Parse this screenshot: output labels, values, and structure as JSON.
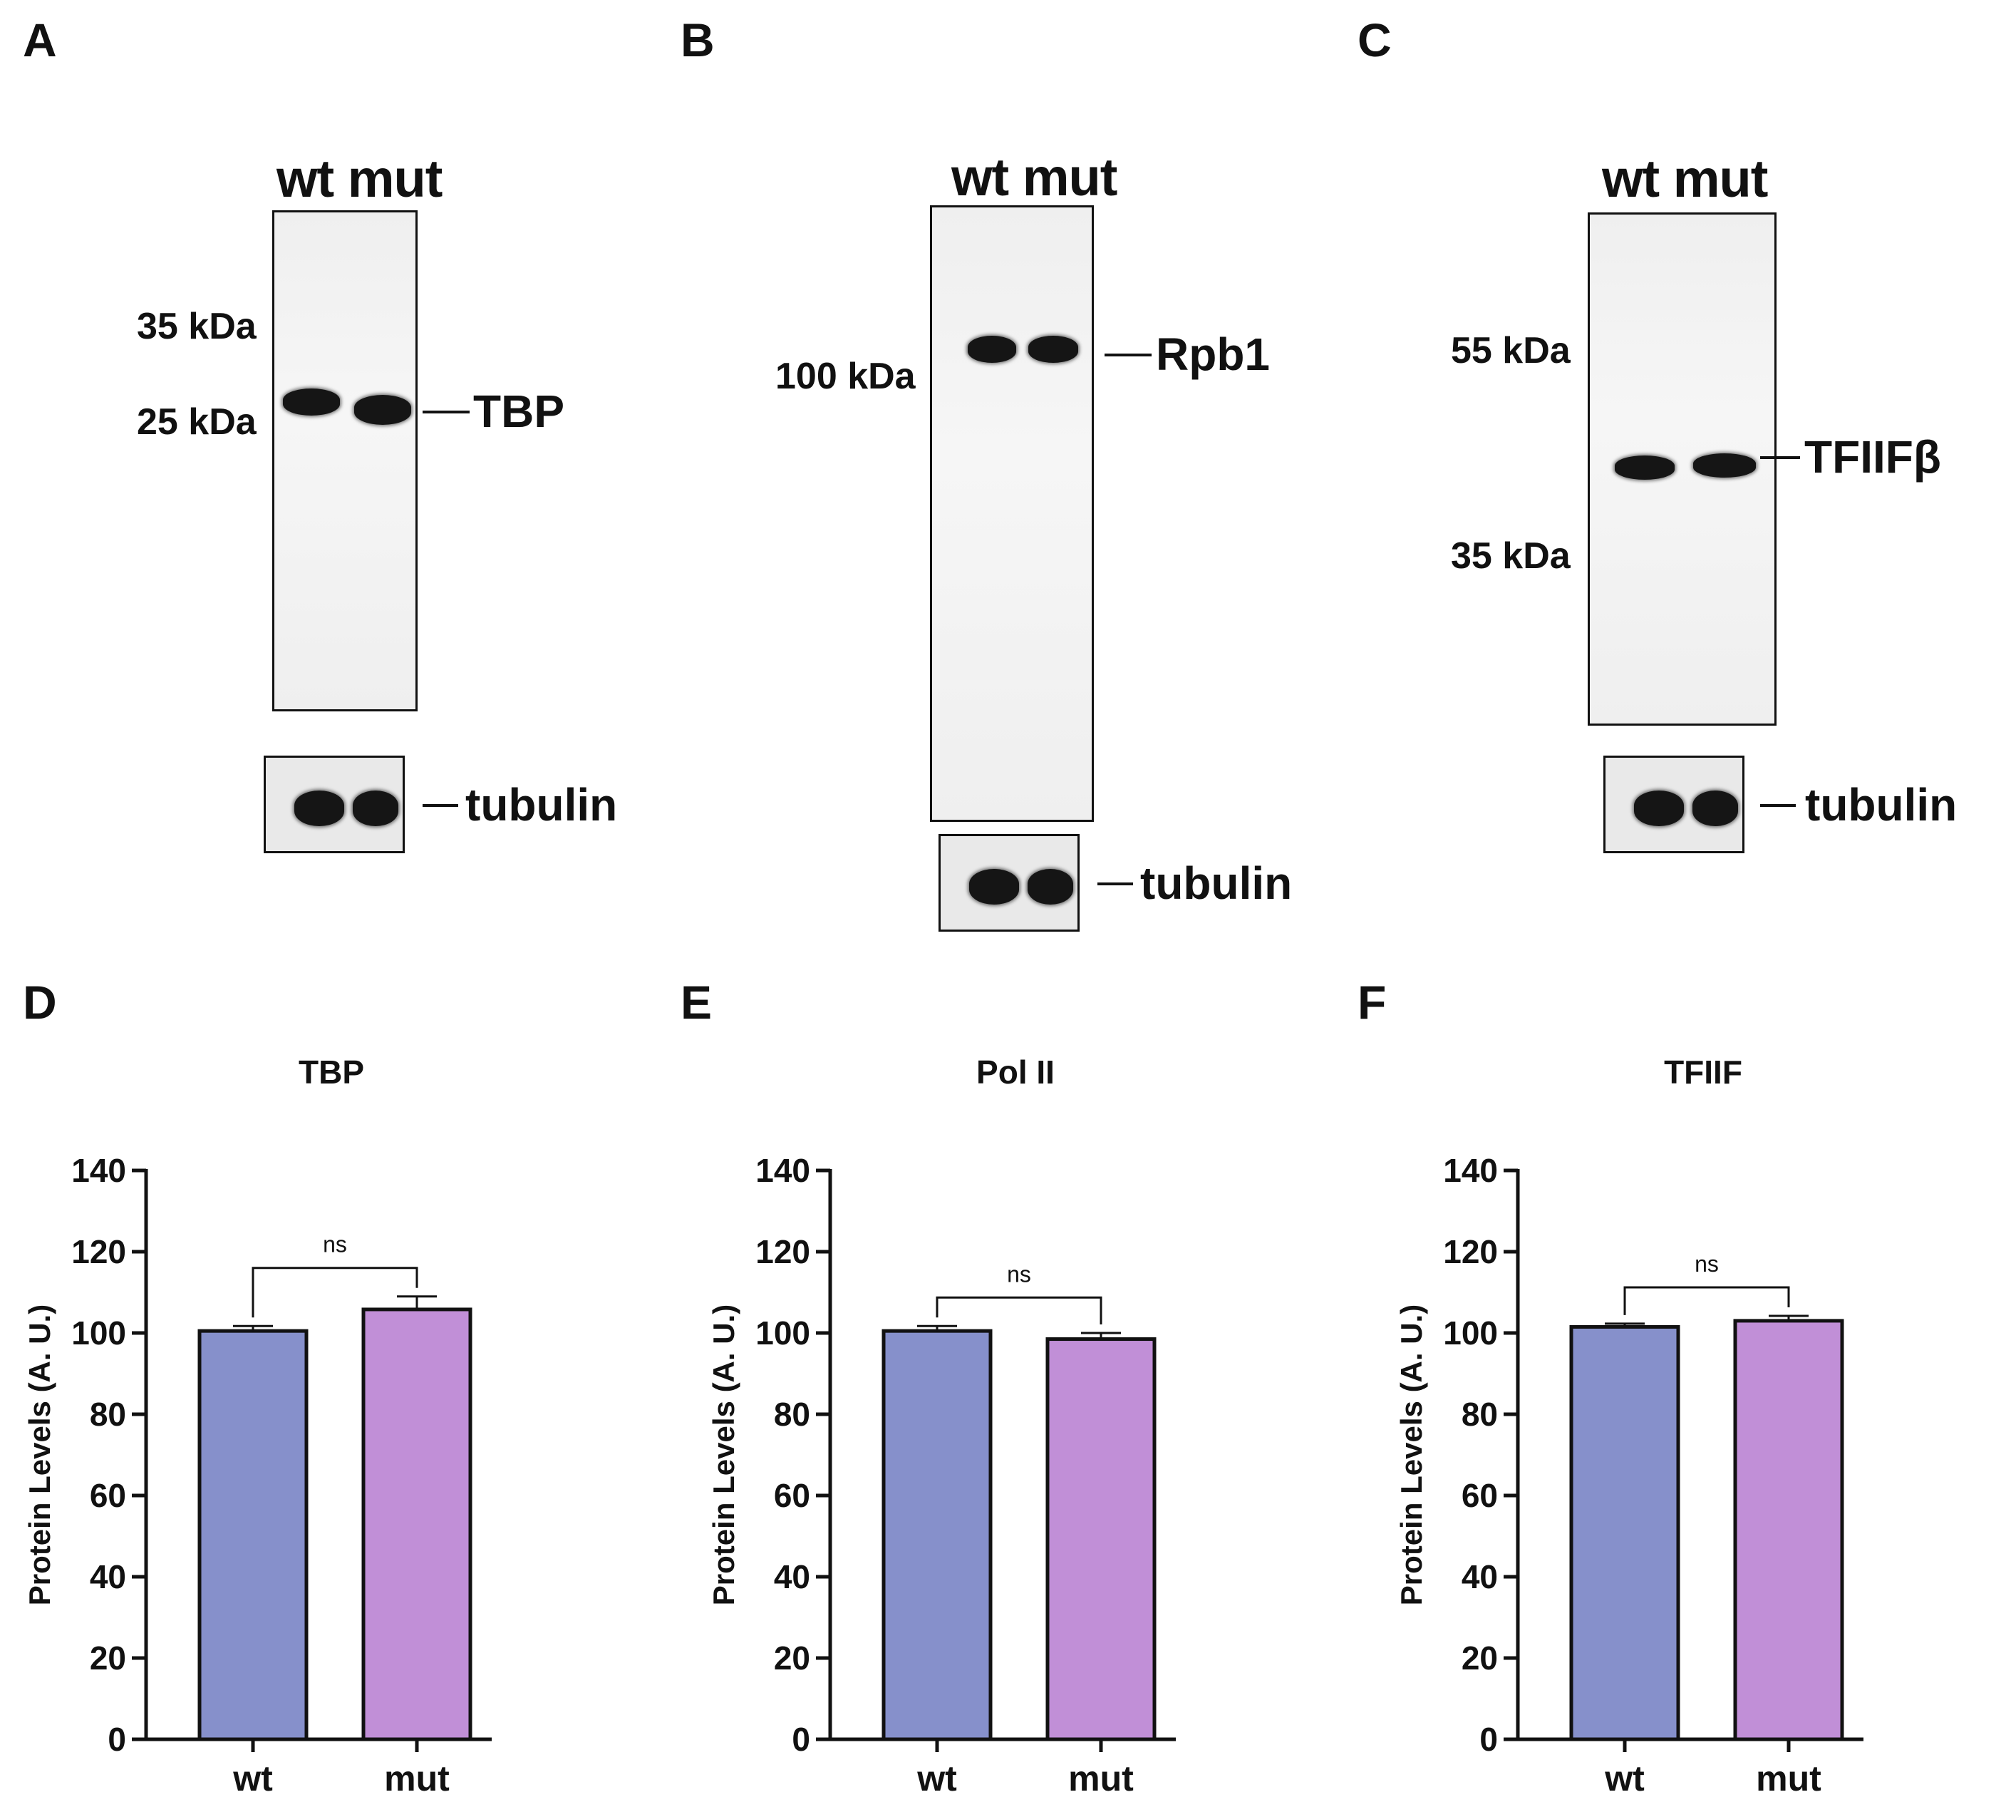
{
  "panels": {
    "A": "A",
    "B": "B",
    "C": "C",
    "D": "D",
    "E": "E",
    "F": "F"
  },
  "blots": [
    {
      "lanes": "wt mut",
      "markers": [
        "35 kDa",
        "25 kDa"
      ],
      "protein": "TBP",
      "loading": "tubulin"
    },
    {
      "lanes": "wt mut",
      "markers": [
        "100 kDa"
      ],
      "protein": "Rpb1",
      "loading": "tubulin"
    },
    {
      "lanes": "wt mut",
      "markers": [
        "55 kDa",
        "35 kDa"
      ],
      "protein": "TFIIFβ",
      "loading": "tubulin"
    }
  ],
  "colors": {
    "wt": "#8690cb",
    "mut": "#c18fd7",
    "axis": "#111111"
  },
  "chart_data": [
    {
      "type": "bar",
      "title": "TBP",
      "categories": [
        "wt",
        "mut"
      ],
      "values": [
        100.5,
        105.8
      ],
      "errors": [
        1.2,
        3.2
      ],
      "ylabel": "Protein Levels (A. U.)",
      "ylim": [
        0,
        140
      ],
      "yticks": [
        0,
        20,
        40,
        60,
        80,
        100,
        120,
        140
      ],
      "significance": "ns"
    },
    {
      "type": "bar",
      "title": "Pol II",
      "categories": [
        "wt",
        "mut"
      ],
      "values": [
        100.5,
        98.5
      ],
      "errors": [
        1.2,
        1.5
      ],
      "ylabel": "Protein Levels (A. U.)",
      "ylim": [
        0,
        140
      ],
      "yticks": [
        0,
        20,
        40,
        60,
        80,
        100,
        120,
        140
      ],
      "significance": "ns"
    },
    {
      "type": "bar",
      "title": "TFIIF",
      "categories": [
        "wt",
        "mut"
      ],
      "values": [
        101.5,
        103.0
      ],
      "errors": [
        0.8,
        1.2
      ],
      "ylabel": "Protein Levels (A. U.)",
      "ylim": [
        0,
        140
      ],
      "yticks": [
        0,
        20,
        40,
        60,
        80,
        100,
        120,
        140
      ],
      "significance": "ns"
    }
  ]
}
